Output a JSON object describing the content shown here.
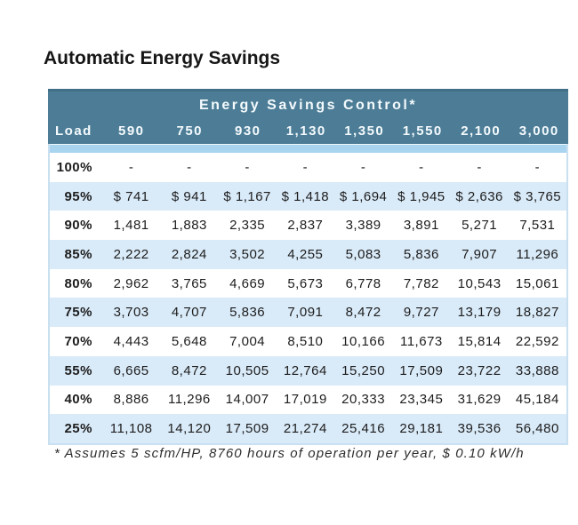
{
  "title": "Automatic Energy Savings",
  "footnote": "* Assumes 5 scfm/HP, 8760 hours of operation per year, $ 0.10 kW/h",
  "chart_data": {
    "type": "table",
    "title": "Automatic Energy Savings",
    "group_header": "Energy Savings Control*",
    "columns": [
      "Load",
      "590",
      "750",
      "930",
      "1,130",
      "1,350",
      "1,550",
      "2,100",
      "3,000"
    ],
    "rows": [
      {
        "load": "100%",
        "values": [
          "-",
          "-",
          "-",
          "-",
          "-",
          "-",
          "-",
          "-"
        ]
      },
      {
        "load": "95%",
        "values": [
          "$ 741",
          "$ 941",
          "$ 1,167",
          "$ 1,418",
          "$ 1,694",
          "$ 1,945",
          "$ 2,636",
          "$ 3,765"
        ]
      },
      {
        "load": "90%",
        "values": [
          "1,481",
          "1,883",
          "2,335",
          "2,837",
          "3,389",
          "3,891",
          "5,271",
          "7,531"
        ]
      },
      {
        "load": "85%",
        "values": [
          "2,222",
          "2,824",
          "3,502",
          "4,255",
          "5,083",
          "5,836",
          "7,907",
          "11,296"
        ]
      },
      {
        "load": "80%",
        "values": [
          "2,962",
          "3,765",
          "4,669",
          "5,673",
          "6,778",
          "7,782",
          "10,543",
          "15,061"
        ]
      },
      {
        "load": "75%",
        "values": [
          "3,703",
          "4,707",
          "5,836",
          "7,091",
          "8,472",
          "9,727",
          "13,179",
          "18,827"
        ]
      },
      {
        "load": "70%",
        "values": [
          "4,443",
          "5,648",
          "7,004",
          "8,510",
          "10,166",
          "11,673",
          "15,814",
          "22,592"
        ]
      },
      {
        "load": "55%",
        "values": [
          "6,665",
          "8,472",
          "10,505",
          "12,764",
          "15,250",
          "17,509",
          "23,722",
          "33,888"
        ]
      },
      {
        "load": "40%",
        "values": [
          "8,886",
          "11,296",
          "14,007",
          "17,019",
          "20,333",
          "23,345",
          "31,629",
          "45,184"
        ]
      },
      {
        "load": "25%",
        "values": [
          "11,108",
          "14,120",
          "17,509",
          "21,274",
          "25,416",
          "29,181",
          "39,536",
          "56,480"
        ]
      }
    ],
    "footnote": "* Assumes 5 scfm/HP, 8760 hours of operation per year, $ 0.10 kW/h",
    "layout_hints": {
      "alternating_rows": true,
      "first_alt_row_index": 1,
      "grid": false
    }
  },
  "colors": {
    "header_teal": "#4d7d96",
    "header_top_edge": "#426f88",
    "accent_strip": "#a9d4ef",
    "row_alt_blue": "#d9eaf8",
    "table_border": "#c9e0f0",
    "header_text": "#f4fafd",
    "body_text": "#1d1d1d"
  }
}
